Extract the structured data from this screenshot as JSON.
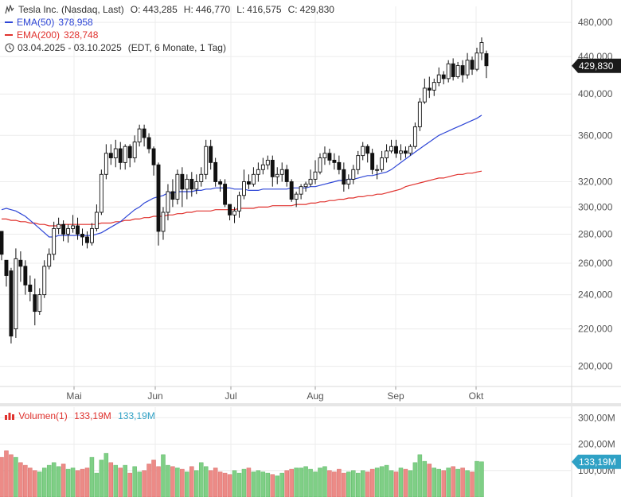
{
  "header": {
    "instrument": "Tesla Inc. (Nasdaq, Last)",
    "ohlc": [
      {
        "label": "O:",
        "value": "443,285"
      },
      {
        "label": "H:",
        "value": "446,770"
      },
      {
        "label": "L:",
        "value": "416,575"
      },
      {
        "label": "C:",
        "value": "429,830"
      }
    ],
    "ema50": {
      "label": "EMA(50)",
      "value": "378,958"
    },
    "ema200": {
      "label": "EMA(200)",
      "value": "328,748"
    },
    "range": "03.04.2025 - 03.10.2025",
    "range_note": "(EDT, 6 Monate, 1 Tag)"
  },
  "colors": {
    "ema50": "#2e46d6",
    "ema200": "#e0322e",
    "vol_up": "#7fcf86",
    "vol_down": "#ec8b87",
    "last_badge": "#1a1a1a",
    "vol_badge": "#2fa1c5"
  },
  "volume_legend": {
    "label": "Volumen(1)",
    "value_red": "133,19M",
    "value_blue": "133,19M"
  },
  "price_badge": "429,830",
  "volume_badge": "133,19M",
  "chart_data": {
    "type": "candlestick",
    "x_labels": [
      "Mai",
      "Jun",
      "Jul",
      "Aug",
      "Sep",
      "Okt"
    ],
    "y_ticks": [
      "480,000",
      "440,000",
      "400,000",
      "360,000",
      "320,000",
      "300,000",
      "280,000",
      "260,000",
      "240,000",
      "220,000",
      "200,000"
    ],
    "y_tick_values": [
      480,
      440,
      400,
      360,
      320,
      300,
      280,
      260,
      240,
      220,
      200
    ],
    "y_scale": "log",
    "ylim": [
      190,
      500
    ],
    "volume_ticks": [
      "300,00M",
      "200,00M",
      "100,00M"
    ],
    "volume_tick_values": [
      300,
      200,
      100
    ],
    "volume_ylim": [
      0,
      340
    ],
    "ohlc": [
      [
        282,
        282,
        262,
        266
      ],
      [
        262,
        262,
        245,
        252
      ],
      [
        255,
        257,
        212,
        216
      ],
      [
        220,
        270,
        215,
        263
      ],
      [
        262,
        268,
        248,
        258
      ],
      [
        258,
        262,
        240,
        246
      ],
      [
        246,
        252,
        236,
        242
      ],
      [
        240,
        250,
        222,
        230
      ],
      [
        230,
        244,
        228,
        240
      ],
      [
        240,
        262,
        238,
        258
      ],
      [
        258,
        270,
        256,
        266
      ],
      [
        266,
        289,
        262,
        284
      ],
      [
        284,
        292,
        280,
        287
      ],
      [
        287,
        290,
        275,
        280
      ],
      [
        280,
        287,
        274,
        284
      ],
      [
        284,
        294,
        281,
        286
      ],
      [
        286,
        292,
        276,
        280
      ],
      [
        280,
        284,
        272,
        278
      ],
      [
        278,
        282,
        270,
        274
      ],
      [
        274,
        288,
        272,
        284
      ],
      [
        284,
        302,
        282,
        296
      ],
      [
        296,
        330,
        294,
        326
      ],
      [
        326,
        352,
        322,
        344
      ],
      [
        344,
        352,
        334,
        340
      ],
      [
        340,
        356,
        332,
        348
      ],
      [
        348,
        354,
        330,
        336
      ],
      [
        336,
        352,
        330,
        350
      ],
      [
        350,
        352,
        332,
        340
      ],
      [
        340,
        360,
        336,
        354
      ],
      [
        354,
        370,
        350,
        366
      ],
      [
        366,
        370,
        350,
        358
      ],
      [
        358,
        362,
        344,
        348
      ],
      [
        348,
        350,
        325,
        334
      ],
      [
        334,
        336,
        272,
        282
      ],
      [
        282,
        300,
        276,
        296
      ],
      [
        296,
        318,
        290,
        312
      ],
      [
        312,
        322,
        300,
        306
      ],
      [
        306,
        330,
        302,
        326
      ],
      [
        326,
        332,
        300,
        314
      ],
      [
        314,
        326,
        306,
        322
      ],
      [
        322,
        328,
        308,
        314
      ],
      [
        314,
        326,
        310,
        320
      ],
      [
        320,
        332,
        316,
        326
      ],
      [
        326,
        356,
        322,
        350
      ],
      [
        350,
        356,
        330,
        336
      ],
      [
        336,
        340,
        316,
        320
      ],
      [
        320,
        322,
        312,
        318
      ],
      [
        318,
        322,
        300,
        302
      ],
      [
        302,
        300,
        290,
        294
      ],
      [
        294,
        300,
        288,
        297
      ],
      [
        297,
        312,
        292,
        309
      ],
      [
        309,
        330,
        306,
        320
      ],
      [
        320,
        326,
        314,
        318
      ],
      [
        318,
        332,
        316,
        326
      ],
      [
        326,
        336,
        320,
        330
      ],
      [
        330,
        340,
        326,
        334
      ],
      [
        334,
        342,
        330,
        338
      ],
      [
        338,
        342,
        316,
        324
      ],
      [
        324,
        332,
        318,
        326
      ],
      [
        326,
        336,
        320,
        330
      ],
      [
        330,
        334,
        316,
        320
      ],
      [
        320,
        322,
        304,
        306
      ],
      [
        306,
        312,
        300,
        310
      ],
      [
        310,
        318,
        306,
        316
      ],
      [
        316,
        320,
        312,
        318
      ],
      [
        318,
        330,
        316,
        322
      ],
      [
        322,
        338,
        318,
        328
      ],
      [
        328,
        344,
        326,
        340
      ],
      [
        340,
        350,
        334,
        344
      ],
      [
        344,
        348,
        334,
        338
      ],
      [
        338,
        344,
        330,
        336
      ],
      [
        336,
        342,
        326,
        330
      ],
      [
        330,
        336,
        312,
        318
      ],
      [
        318,
        326,
        314,
        322
      ],
      [
        322,
        334,
        318,
        330
      ],
      [
        330,
        346,
        326,
        342
      ],
      [
        342,
        354,
        338,
        350
      ],
      [
        350,
        352,
        336,
        344
      ],
      [
        344,
        348,
        326,
        330
      ],
      [
        330,
        334,
        322,
        330
      ],
      [
        330,
        346,
        328,
        340
      ],
      [
        340,
        352,
        336,
        346
      ],
      [
        346,
        356,
        344,
        350
      ],
      [
        350,
        356,
        340,
        344
      ],
      [
        344,
        352,
        338,
        346
      ],
      [
        346,
        350,
        340,
        344
      ],
      [
        344,
        352,
        342,
        350
      ],
      [
        350,
        372,
        348,
        368
      ],
      [
        368,
        396,
        364,
        392
      ],
      [
        392,
        416,
        390,
        406
      ],
      [
        406,
        418,
        396,
        404
      ],
      [
        404,
        416,
        398,
        412
      ],
      [
        412,
        428,
        408,
        420
      ],
      [
        420,
        424,
        410,
        416
      ],
      [
        416,
        436,
        412,
        432
      ],
      [
        432,
        438,
        414,
        418
      ],
      [
        418,
        434,
        416,
        430
      ],
      [
        430,
        436,
        412,
        420
      ],
      [
        420,
        444,
        416,
        436
      ],
      [
        436,
        440,
        420,
        426
      ],
      [
        426,
        450,
        424,
        444
      ],
      [
        444,
        462,
        436,
        456
      ],
      [
        443.285,
        446.77,
        416.575,
        429.83
      ]
    ],
    "ema50": [
      298,
      299,
      298,
      297,
      295,
      293,
      290,
      287,
      284,
      281,
      278,
      278,
      279,
      279,
      279,
      279,
      279,
      279,
      279,
      279,
      280,
      281,
      283,
      285,
      287,
      289,
      292,
      295,
      298,
      300,
      303,
      305,
      307,
      308,
      309,
      311,
      311,
      312,
      312,
      312,
      312,
      313,
      313,
      314,
      314,
      315,
      315,
      315,
      315,
      314,
      314,
      314,
      313,
      313,
      313,
      314,
      314,
      314,
      314,
      314,
      314,
      315,
      315,
      315,
      315,
      316,
      316,
      317,
      318,
      319,
      320,
      321,
      321,
      322,
      322,
      323,
      324,
      325,
      325,
      326,
      327,
      328,
      330,
      333,
      336,
      339,
      342,
      345,
      348,
      351,
      354,
      357,
      360,
      362,
      364,
      366,
      368,
      370,
      372,
      374,
      376,
      379
    ],
    "ema200": [
      291,
      291,
      290,
      290,
      289,
      289,
      288,
      288,
      287,
      287,
      286,
      286,
      286,
      287,
      287,
      287,
      287,
      287,
      287,
      287,
      287,
      288,
      288,
      288,
      289,
      289,
      290,
      290,
      291,
      291,
      292,
      292,
      293,
      293,
      293,
      294,
      294,
      295,
      295,
      296,
      296,
      297,
      297,
      297,
      297,
      298,
      298,
      298,
      298,
      298,
      299,
      299,
      299,
      299,
      300,
      300,
      300,
      301,
      301,
      301,
      301,
      301,
      302,
      302,
      302,
      303,
      303,
      304,
      304,
      305,
      305,
      306,
      306,
      307,
      307,
      308,
      308,
      309,
      309,
      310,
      310,
      311,
      312,
      313,
      314,
      316,
      317,
      318,
      319,
      320,
      321,
      322,
      323,
      323,
      324,
      325,
      326,
      326,
      327,
      327,
      328,
      328.7
    ],
    "volume": [
      150,
      175,
      160,
      150,
      130,
      120,
      110,
      100,
      95,
      110,
      120,
      130,
      115,
      125,
      105,
      110,
      100,
      105,
      110,
      150,
      90,
      140,
      165,
      130,
      120,
      110,
      120,
      90,
      115,
      95,
      100,
      125,
      140,
      115,
      160,
      120,
      115,
      110,
      105,
      95,
      115,
      100,
      130,
      115,
      100,
      110,
      95,
      90,
      85,
      100,
      90,
      105,
      110,
      95,
      100,
      95,
      90,
      85,
      80,
      90,
      100,
      105,
      110,
      110,
      115,
      105,
      95,
      110,
      115,
      100,
      95,
      105,
      90,
      95,
      100,
      90,
      100,
      95,
      105,
      110,
      115,
      120,
      100,
      95,
      110,
      105,
      100,
      130,
      160,
      135,
      125,
      110,
      105,
      100,
      110,
      115,
      105,
      110,
      100,
      95,
      135,
      133.19
    ]
  }
}
